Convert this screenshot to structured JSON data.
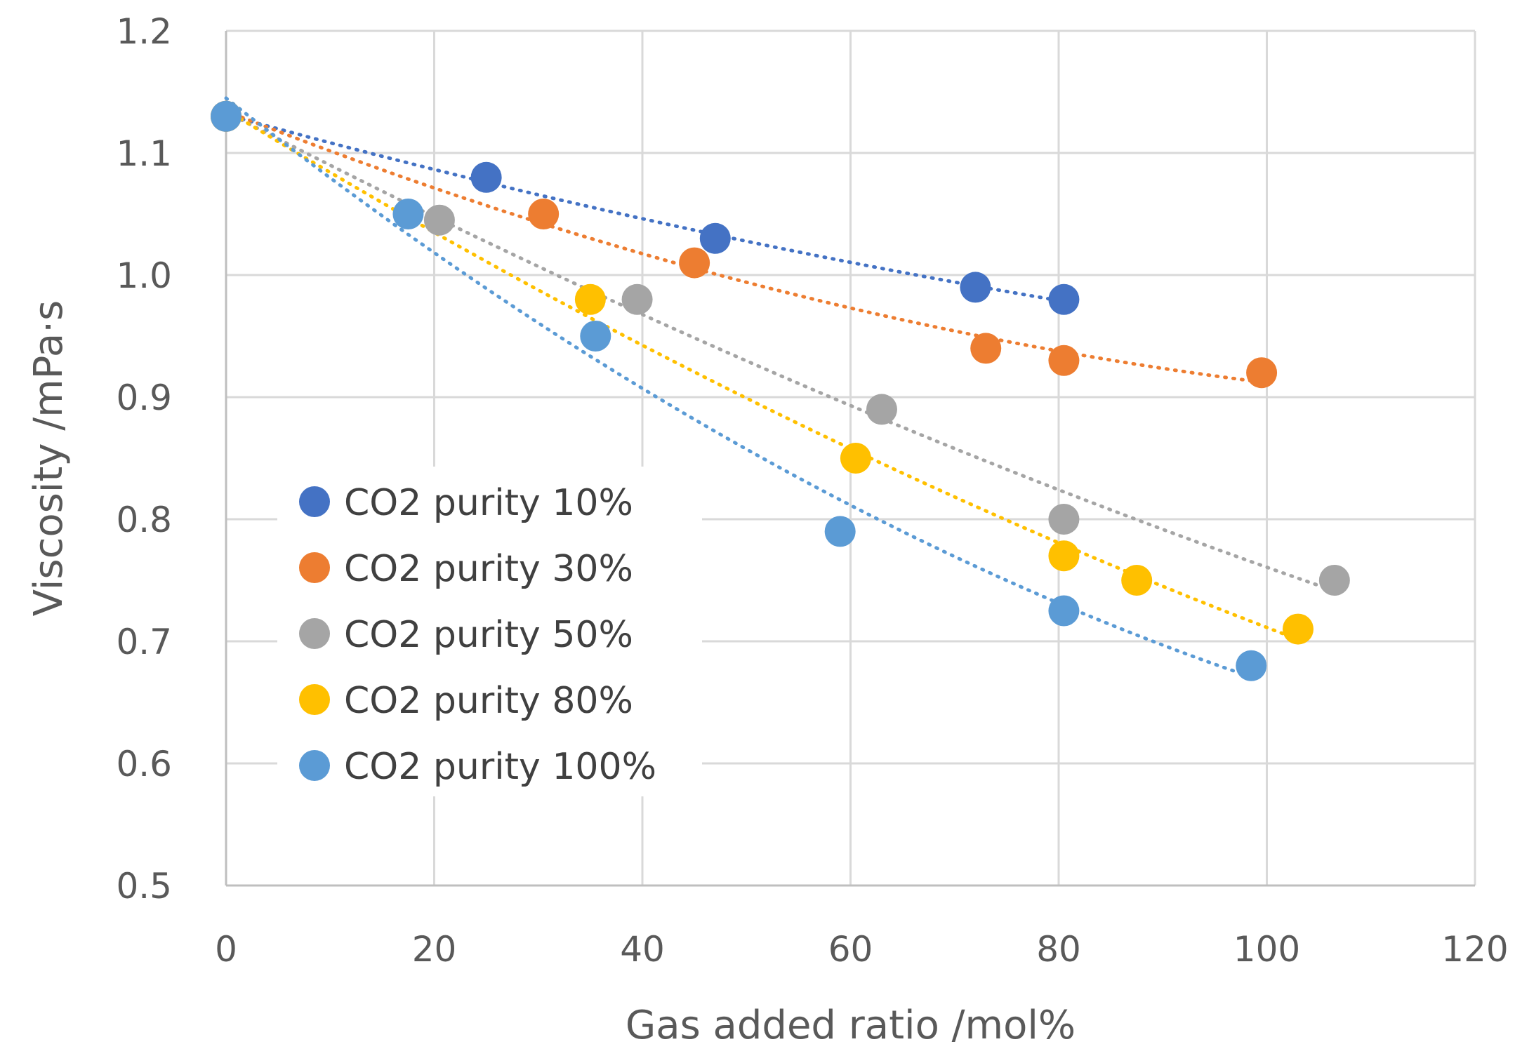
{
  "chart_data": {
    "type": "scatter",
    "title": "",
    "xlabel": "Gas added ratio /mol%",
    "ylabel": "Viscosity /mPa·s",
    "xlim": [
      0,
      120
    ],
    "ylim": [
      0.5,
      1.2
    ],
    "x_ticks": [
      "0",
      "20",
      "40",
      "60",
      "80",
      "100",
      "120"
    ],
    "y_ticks": [
      "0.5",
      "0.6",
      "0.7",
      "0.8",
      "0.9",
      "1.0",
      "1.1",
      "1.2"
    ],
    "grid": true,
    "trendline": "dotted",
    "legend_position": "center-left",
    "series": [
      {
        "name": "CO2 purity 10%",
        "color": "#4472C4",
        "x": [
          0,
          25,
          47,
          72,
          80.5
        ],
        "y": [
          1.13,
          1.08,
          1.03,
          0.99,
          0.98
        ]
      },
      {
        "name": "CO2 purity 30%",
        "color": "#ED7D31",
        "x": [
          0,
          30.5,
          45,
          73,
          80.5,
          99.5
        ],
        "y": [
          1.13,
          1.05,
          1.01,
          0.94,
          0.93,
          0.92
        ]
      },
      {
        "name": "CO2 purity 50%",
        "color": "#A5A5A5",
        "x": [
          0,
          20.5,
          39.5,
          63,
          80.5,
          106.5
        ],
        "y": [
          1.13,
          1.045,
          0.98,
          0.89,
          0.8,
          0.75
        ]
      },
      {
        "name": "CO2 purity 80%",
        "color": "#FFC000",
        "x": [
          0,
          35,
          60.5,
          80.5,
          87.5,
          103
        ],
        "y": [
          1.13,
          0.98,
          0.85,
          0.77,
          0.75,
          0.71
        ]
      },
      {
        "name": "CO2 purity 100%",
        "color": "#5B9BD5",
        "x": [
          0,
          17.5,
          35.5,
          59,
          80.5,
          98.5
        ],
        "y": [
          1.13,
          1.05,
          0.95,
          0.79,
          0.725,
          0.68
        ]
      }
    ]
  }
}
